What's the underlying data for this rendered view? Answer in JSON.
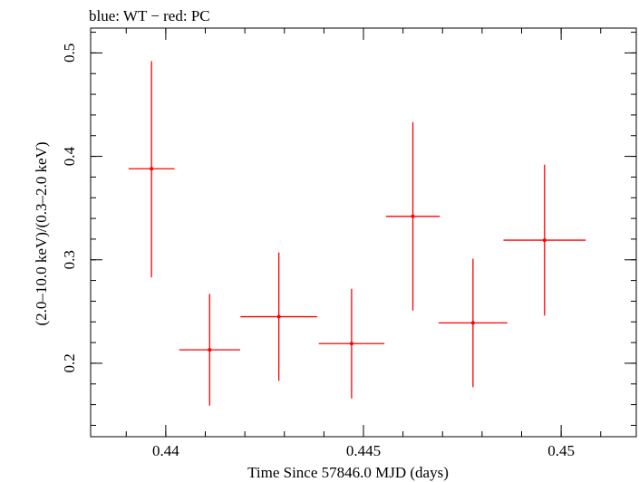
{
  "chart_data": {
    "type": "scatter",
    "title": "blue: WT − red: PC",
    "xlabel": "Time Since 57846.0 MJD (days)",
    "ylabel": "(2.0–10.0 keV)/(0.3–2.0 keV)",
    "xlim": [
      0.4381,
      0.4519
    ],
    "ylim": [
      0.129,
      0.524
    ],
    "x_ticks": [
      {
        "value": 0.44,
        "label": "0.44"
      },
      {
        "value": 0.445,
        "label": "0.445"
      },
      {
        "value": 0.45,
        "label": "0.45"
      }
    ],
    "y_ticks": [
      {
        "value": 0.2,
        "label": "0.2"
      },
      {
        "value": 0.3,
        "label": "0.3"
      },
      {
        "value": 0.4,
        "label": "0.4"
      },
      {
        "value": 0.5,
        "label": "0.5"
      }
    ],
    "x_minor_step": 0.001,
    "y_minor_step": 0.02,
    "grid": false,
    "series": [
      {
        "name": "PC",
        "color": "#ff0000",
        "points": [
          {
            "x": 0.43964,
            "xerr": 0.00058,
            "y": 0.388,
            "yerr_low": 0.105,
            "yerr_high": 0.104
          },
          {
            "x": 0.44111,
            "xerr": 0.00077,
            "y": 0.213,
            "yerr_low": 0.054,
            "yerr_high": 0.054
          },
          {
            "x": 0.44286,
            "xerr": 0.00097,
            "y": 0.245,
            "yerr_low": 0.062,
            "yerr_high": 0.062
          },
          {
            "x": 0.4447,
            "xerr": 0.00083,
            "y": 0.219,
            "yerr_low": 0.053,
            "yerr_high": 0.053
          },
          {
            "x": 0.44625,
            "xerr": 0.00068,
            "y": 0.342,
            "yerr_low": 0.091,
            "yerr_high": 0.091
          },
          {
            "x": 0.44777,
            "xerr": 0.00087,
            "y": 0.239,
            "yerr_low": 0.062,
            "yerr_high": 0.062
          },
          {
            "x": 0.44958,
            "xerr": 0.00104,
            "y": 0.319,
            "yerr_low": 0.073,
            "yerr_high": 0.073
          }
        ]
      }
    ]
  }
}
